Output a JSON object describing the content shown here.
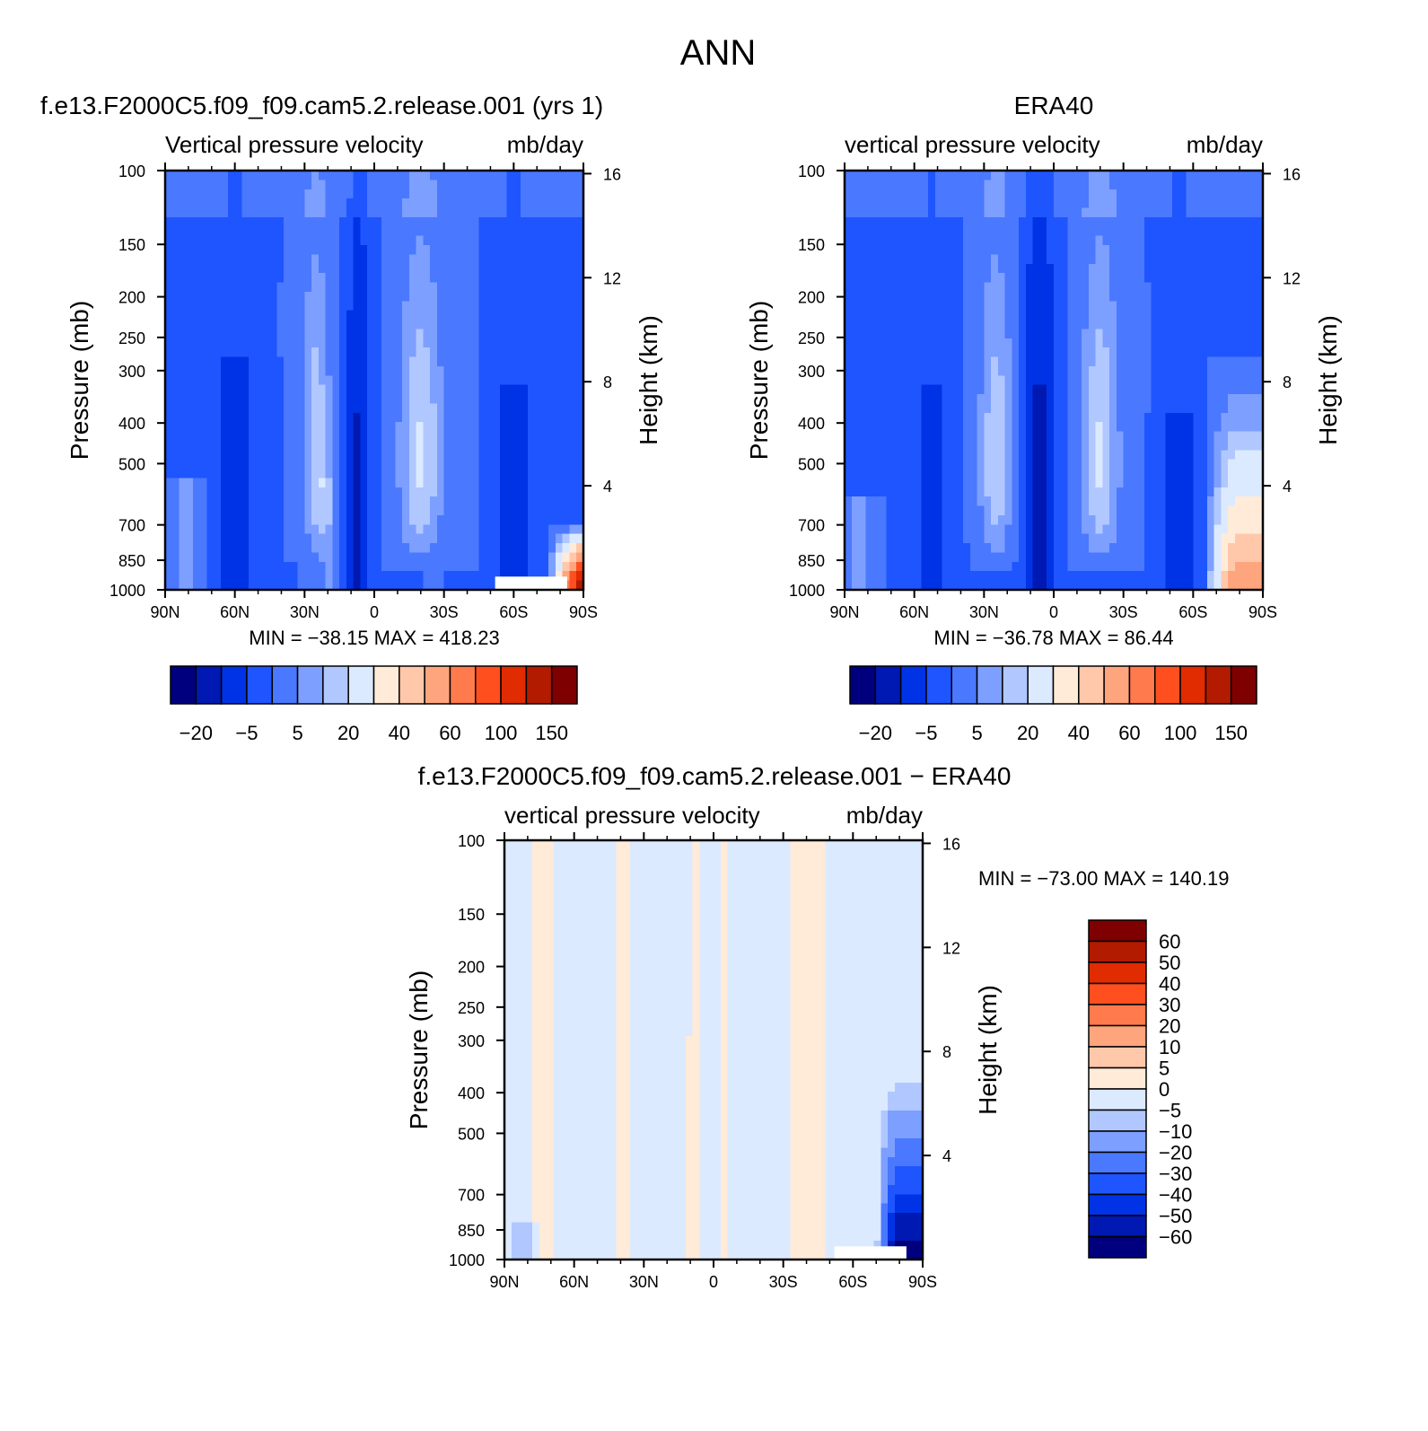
{
  "figure": {
    "title": "ANN"
  },
  "palettes": {
    "full": [
      "#00007f",
      "#0019b2",
      "#0033e5",
      "#1e55ff",
      "#4a78ff",
      "#7d9fff",
      "#b0c8ff",
      "#dceaff",
      "#ffebd8",
      "#ffc8aa",
      "#ffa57e",
      "#ff7a4c",
      "#ff4f1e",
      "#e02c00",
      "#b21b00",
      "#7f0000"
    ],
    "diff": [
      "#00007f",
      "#0019b2",
      "#0033e5",
      "#1e55ff",
      "#4a78ff",
      "#7d9fff",
      "#b0c8ff",
      "#dceaff",
      "#ffebd8",
      "#ffc8aa",
      "#ffa57e",
      "#ff7a4c",
      "#ff4f1e",
      "#e02c00",
      "#b21b00",
      "#7f0000"
    ]
  },
  "chart_data": [
    {
      "id": "model",
      "type": "heatmap",
      "title": "f.e13.F2000C5.f09_f09.cam5.2.release.001 (yrs 1)",
      "subtitle_left": "Vertical pressure velocity",
      "subtitle_right": "mb/day",
      "ylabel": "Pressure (mb)",
      "y2label": "Height (km)",
      "xticks": [
        "90N",
        "60N",
        "30N",
        "0",
        "30S",
        "60S",
        "90S"
      ],
      "x_values": [
        90,
        60,
        30,
        0,
        -30,
        -60,
        -90
      ],
      "yticks": [
        100,
        150,
        200,
        250,
        300,
        400,
        500,
        700,
        850,
        1000
      ],
      "y2ticks": [
        4,
        8,
        12,
        16
      ],
      "ylim": [
        1000,
        100
      ],
      "stats": "MIN = −38.15   MAX = 418.23",
      "min": -38.15,
      "max": 418.23,
      "colorbar": {
        "labels": [
          "−20",
          "−5",
          "5",
          "20",
          "40",
          "60",
          "100",
          "150"
        ],
        "levels": [
          -30,
          -20,
          -10,
          -5,
          0,
          5,
          10,
          20,
          30,
          40,
          50,
          60,
          80,
          100,
          150
        ]
      }
    },
    {
      "id": "obs",
      "type": "heatmap",
      "title": "ERA40",
      "subtitle_left": "vertical pressure velocity",
      "subtitle_right": "mb/day",
      "ylabel": "Pressure (mb)",
      "y2label": "Height (km)",
      "xticks": [
        "90N",
        "60N",
        "30N",
        "0",
        "30S",
        "60S",
        "90S"
      ],
      "x_values": [
        90,
        60,
        30,
        0,
        -30,
        -60,
        -90
      ],
      "yticks": [
        100,
        150,
        200,
        250,
        300,
        400,
        500,
        700,
        850,
        1000
      ],
      "y2ticks": [
        4,
        8,
        12,
        16
      ],
      "ylim": [
        1000,
        100
      ],
      "stats": "MIN = −36.78   MAX =  86.44",
      "min": -36.78,
      "max": 86.44,
      "colorbar": {
        "labels": [
          "−20",
          "−5",
          "5",
          "20",
          "40",
          "60",
          "100",
          "150"
        ],
        "levels": [
          -30,
          -20,
          -10,
          -5,
          0,
          5,
          10,
          20,
          30,
          40,
          50,
          60,
          80,
          100,
          150
        ]
      }
    },
    {
      "id": "diff",
      "type": "heatmap",
      "title": "f.e13.F2000C5.f09_f09.cam5.2.release.001 − ERA40",
      "subtitle_left": "vertical pressure velocity",
      "subtitle_right": "mb/day",
      "ylabel": "Pressure (mb)",
      "y2label": "Height (km)",
      "xticks": [
        "90N",
        "60N",
        "30N",
        "0",
        "30S",
        "60S",
        "90S"
      ],
      "x_values": [
        90,
        60,
        30,
        0,
        -30,
        -60,
        -90
      ],
      "yticks": [
        100,
        150,
        200,
        250,
        300,
        400,
        500,
        700,
        850,
        1000
      ],
      "y2ticks": [
        4,
        8,
        12,
        16
      ],
      "ylim": [
        1000,
        100
      ],
      "stats": "MIN = −73.00   MAX = 140.19",
      "min": -73.0,
      "max": 140.19,
      "colorbar": {
        "labels": [
          "60",
          "50",
          "40",
          "30",
          "20",
          "10",
          "5",
          "0",
          "−5",
          "−10",
          "−20",
          "−30",
          "−40",
          "−50",
          "−60"
        ],
        "levels": [
          60,
          50,
          40,
          30,
          20,
          10,
          5,
          0,
          -5,
          -10,
          -20,
          -30,
          -40,
          -50,
          -60
        ]
      }
    }
  ]
}
